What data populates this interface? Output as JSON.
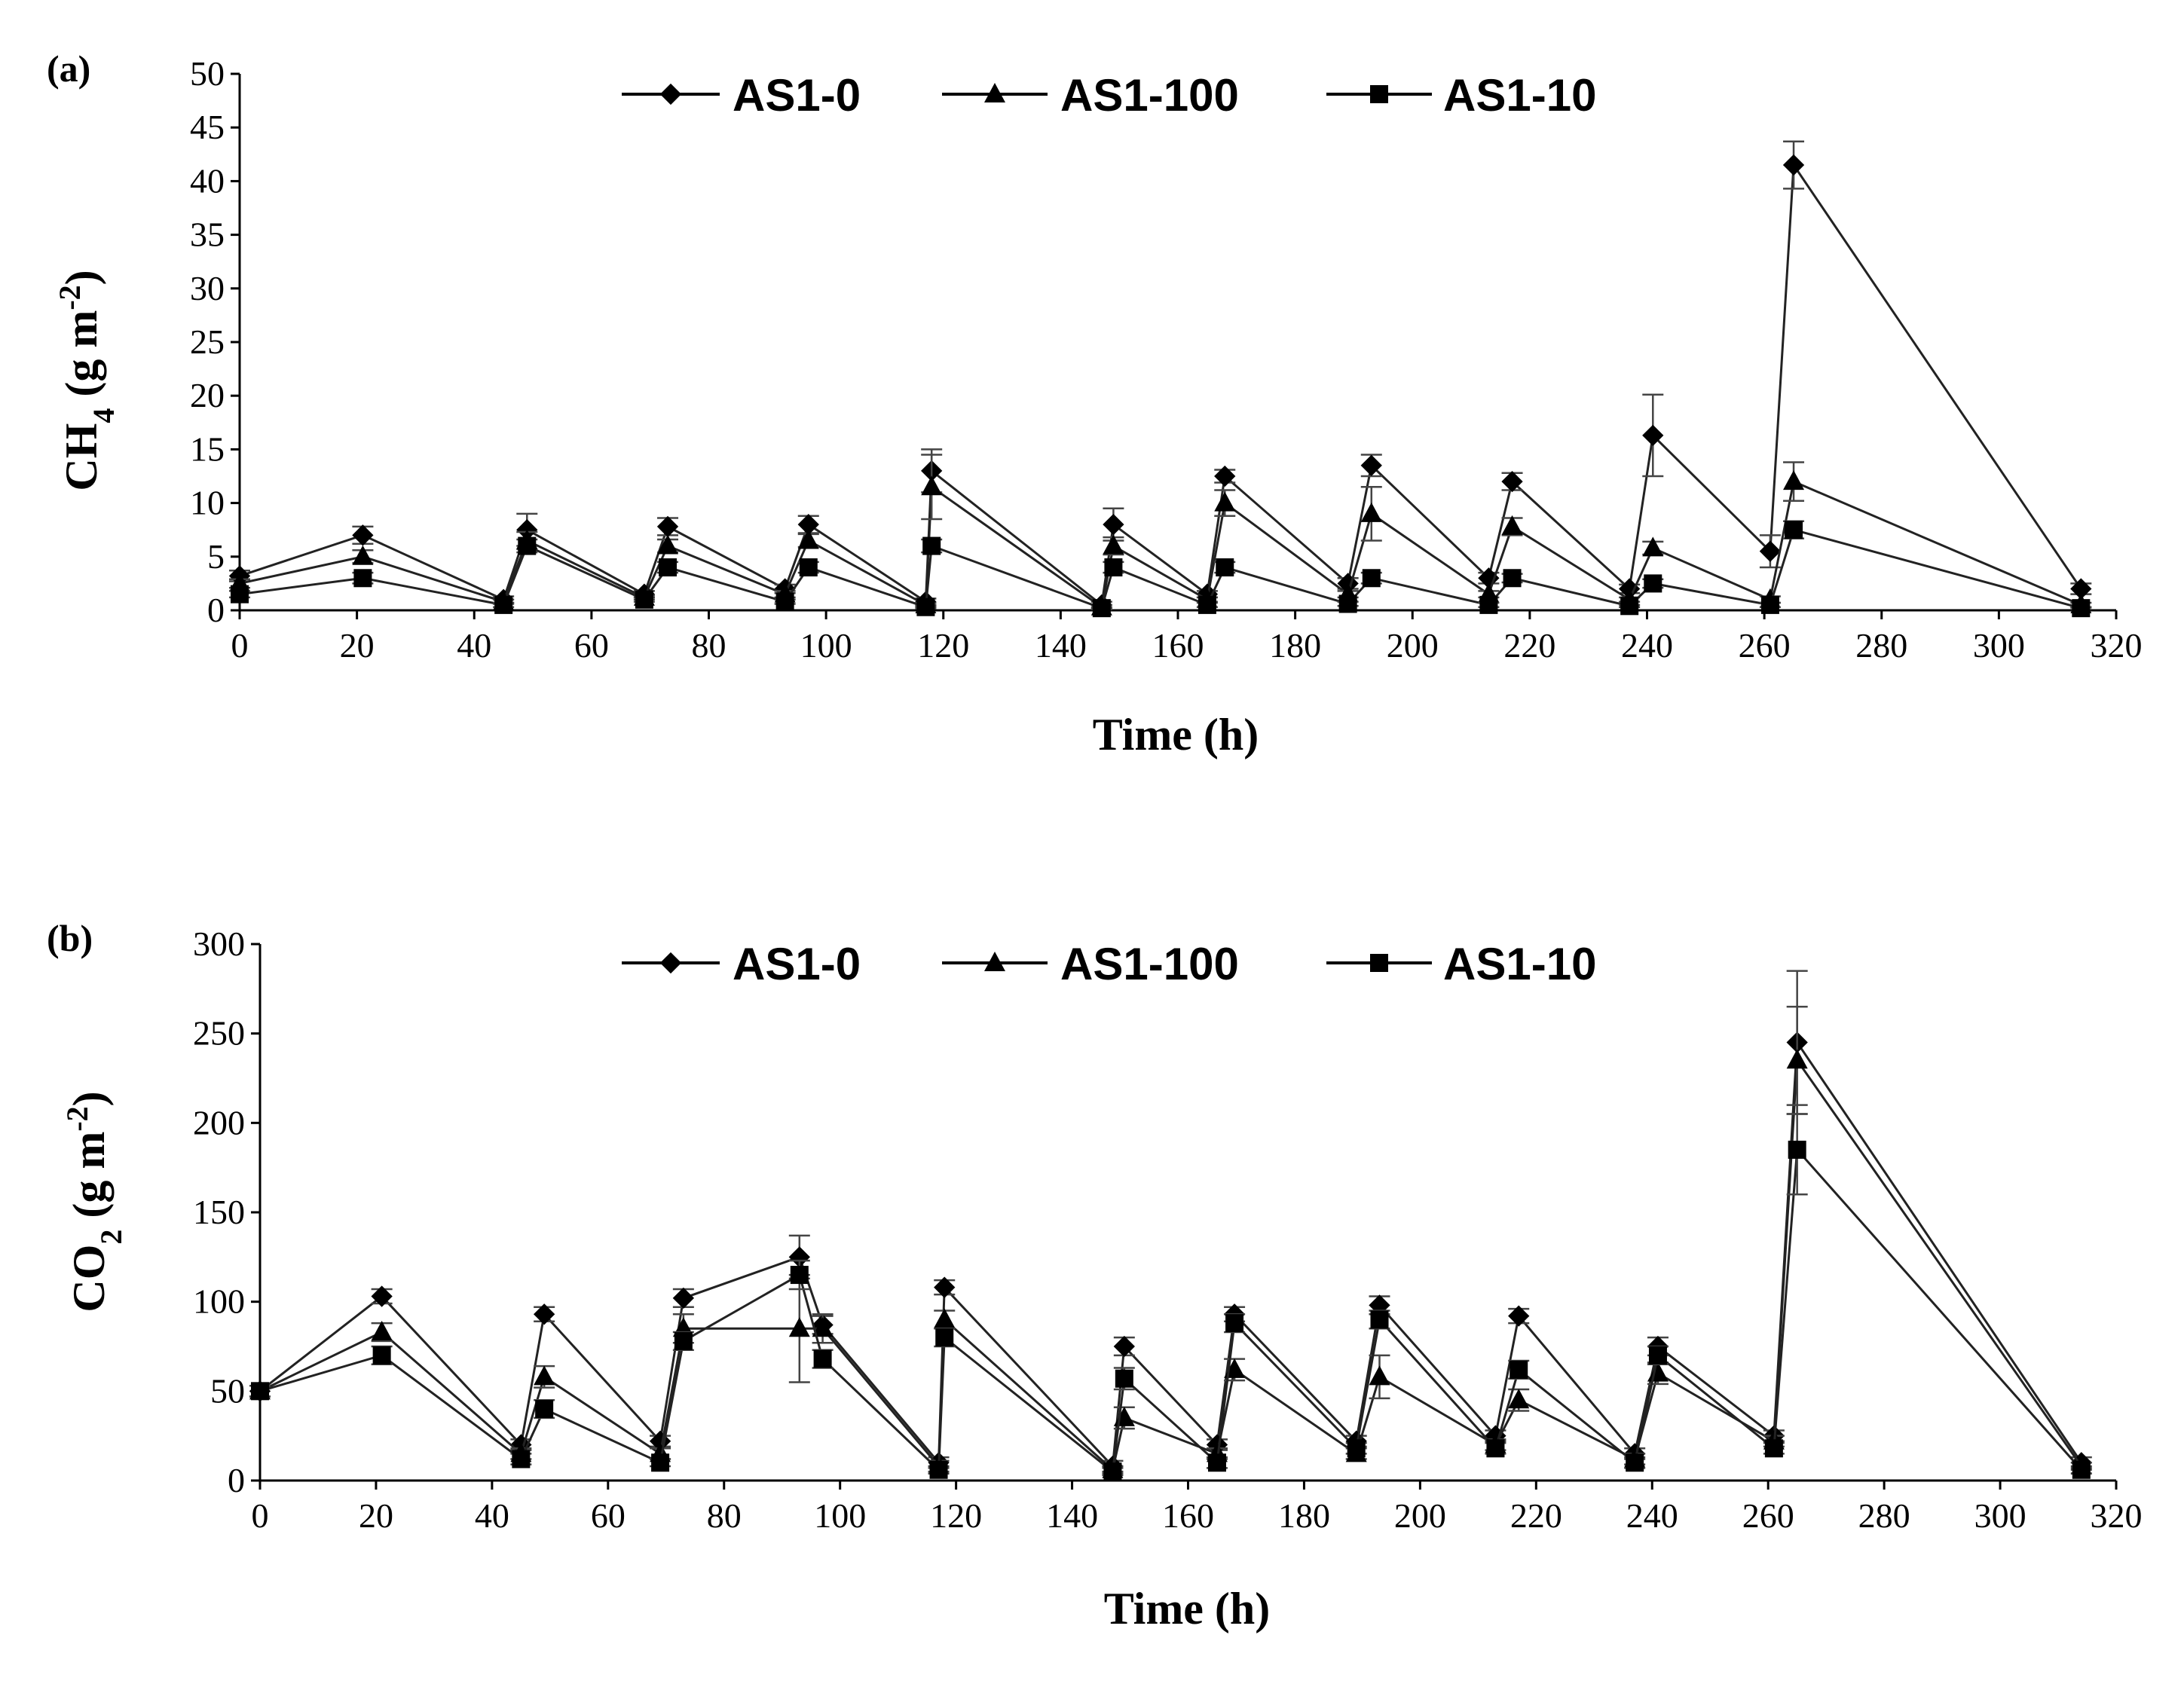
{
  "chart_data": [
    {
      "type": "line",
      "panel_label": "(a)",
      "ylabel_main": "CH",
      "ylabel_sub": "4",
      "ylabel_tail": " (g m",
      "ylabel_sup": "-2",
      "ylabel_close": ")",
      "xlabel": "Time (h)",
      "xlim": [
        0,
        320
      ],
      "ylim": [
        0,
        50
      ],
      "xticks": [
        0,
        20,
        40,
        60,
        80,
        100,
        120,
        140,
        160,
        180,
        200,
        220,
        240,
        260,
        280,
        300,
        320
      ],
      "yticks": [
        0,
        5,
        10,
        15,
        20,
        25,
        30,
        35,
        40,
        45,
        50
      ],
      "x": [
        0,
        21,
        45,
        49,
        69,
        73,
        93,
        97,
        117,
        118,
        147,
        149,
        165,
        168,
        189,
        193,
        213,
        217,
        237,
        241,
        261,
        265,
        314
      ],
      "series": [
        {
          "name": "AS1-0",
          "marker": "diamond",
          "values": [
            3.2,
            7.0,
            1.0,
            7.5,
            1.5,
            7.8,
            2.0,
            8.0,
            0.8,
            13.0,
            0.5,
            8.0,
            1.5,
            12.5,
            2.5,
            13.5,
            3.0,
            12.0,
            2.0,
            16.3,
            5.5,
            41.5,
            2.0
          ],
          "errors": [
            0.5,
            0.8,
            0.3,
            1.5,
            0.3,
            0.8,
            0.4,
            0.8,
            0.3,
            2.0,
            0.3,
            1.5,
            0.3,
            0.6,
            0.5,
            1.0,
            0.5,
            0.8,
            0.4,
            3.8,
            1.5,
            2.2,
            0.5
          ]
        },
        {
          "name": "AS1-100",
          "marker": "triangle",
          "values": [
            2.5,
            5.0,
            0.8,
            6.5,
            1.2,
            6.0,
            1.5,
            6.5,
            0.5,
            11.5,
            0.3,
            6.0,
            1.0,
            10.0,
            1.5,
            9.0,
            1.5,
            7.8,
            1.0,
            5.8,
            1.0,
            12.0,
            0.5
          ],
          "errors": [
            0.4,
            0.6,
            0.2,
            0.8,
            0.2,
            0.6,
            0.3,
            0.6,
            0.2,
            3.0,
            0.2,
            0.8,
            0.2,
            1.2,
            0.3,
            2.5,
            0.3,
            0.8,
            0.2,
            0.6,
            0.3,
            1.8,
            0.2
          ]
        },
        {
          "name": "AS1-10",
          "marker": "square",
          "values": [
            1.5,
            3.0,
            0.5,
            6.0,
            1.0,
            4.0,
            0.8,
            4.0,
            0.3,
            6.0,
            0.2,
            4.0,
            0.5,
            4.0,
            0.6,
            3.0,
            0.5,
            3.0,
            0.4,
            2.5,
            0.5,
            7.5,
            0.2
          ],
          "errors": [
            0.3,
            0.5,
            0.2,
            0.6,
            0.2,
            0.5,
            0.2,
            0.5,
            0.1,
            0.6,
            0.1,
            0.5,
            0.2,
            0.5,
            0.2,
            0.5,
            0.2,
            0.4,
            0.1,
            0.4,
            0.2,
            0.8,
            0.1
          ]
        }
      ]
    },
    {
      "type": "line",
      "panel_label": "(b)",
      "ylabel_main": "CO",
      "ylabel_sub": "2",
      "ylabel_tail": " (g m",
      "ylabel_sup": "-2",
      "ylabel_close": ")",
      "xlabel": "Time (h)",
      "xlim": [
        0,
        320
      ],
      "ylim": [
        0,
        300
      ],
      "xticks": [
        0,
        20,
        40,
        60,
        80,
        100,
        120,
        140,
        160,
        180,
        200,
        220,
        240,
        260,
        280,
        300,
        320
      ],
      "yticks": [
        0,
        50,
        100,
        150,
        200,
        250,
        300
      ],
      "x": [
        0,
        21,
        45,
        49,
        69,
        73,
        93,
        97,
        117,
        118,
        147,
        149,
        165,
        168,
        189,
        193,
        213,
        217,
        237,
        241,
        261,
        265,
        314
      ],
      "series": [
        {
          "name": "AS1-0",
          "marker": "diamond",
          "values": [
            50,
            103,
            20,
            93,
            22,
            102,
            125,
            87,
            10,
            108,
            8,
            75,
            20,
            93,
            22,
            98,
            25,
            92,
            15,
            75,
            25,
            245,
            10
          ],
          "errors": [
            3,
            4,
            3,
            4,
            3,
            5,
            12,
            5,
            3,
            4,
            3,
            5,
            3,
            4,
            3,
            5,
            3,
            4,
            3,
            5,
            3,
            40,
            3
          ]
        },
        {
          "name": "AS1-100",
          "marker": "triangle",
          "values": [
            50,
            83,
            15,
            58,
            15,
            85,
            85,
            85,
            8,
            90,
            6,
            35,
            15,
            62,
            15,
            58,
            20,
            45,
            12,
            60,
            22,
            235,
            8
          ],
          "errors": [
            3,
            5,
            3,
            6,
            3,
            8,
            30,
            8,
            3,
            5,
            2,
            6,
            3,
            6,
            3,
            12,
            3,
            6,
            3,
            6,
            3,
            30,
            2
          ]
        },
        {
          "name": "AS1-10",
          "marker": "square",
          "values": [
            50,
            70,
            12,
            40,
            10,
            78,
            115,
            68,
            6,
            80,
            5,
            57,
            10,
            88,
            18,
            90,
            18,
            62,
            10,
            70,
            18,
            185,
            6
          ],
          "errors": [
            3,
            5,
            3,
            5,
            2,
            5,
            8,
            5,
            2,
            5,
            2,
            6,
            3,
            5,
            3,
            5,
            3,
            5,
            3,
            5,
            3,
            25,
            2
          ]
        }
      ]
    }
  ]
}
